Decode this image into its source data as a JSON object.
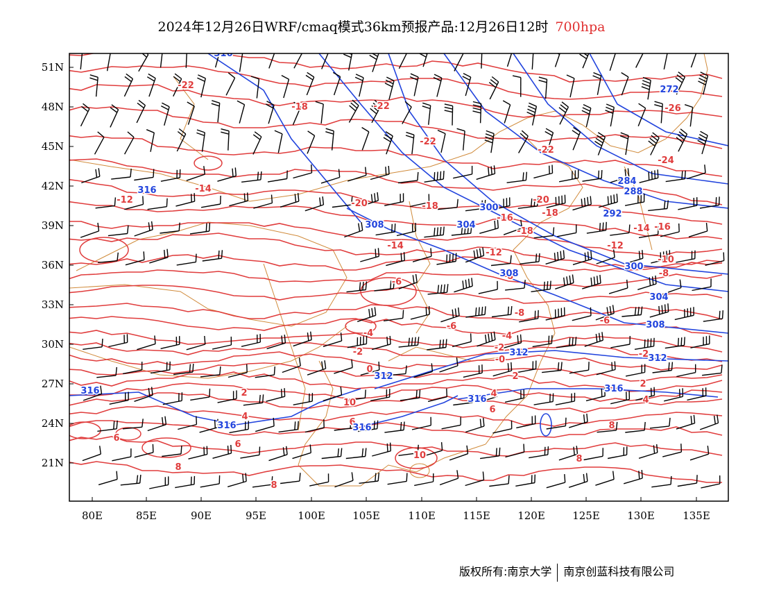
{
  "title": {
    "main": "2024年12月26日WRF/cmaq模式36km预报产品:12月26日12时",
    "level": "700hpa"
  },
  "colors": {
    "temperature_contour": "#e03c3c",
    "height_contour": "#2244dd",
    "border": "#d08a3a",
    "wind_barb": "#000000",
    "level_text": "#e03030"
  },
  "map": {
    "lon_labels": [
      "80E",
      "85E",
      "90E",
      "95E",
      "100E",
      "105E",
      "110E",
      "115E",
      "120E",
      "125E",
      "130E",
      "135E"
    ],
    "lat_labels": [
      "51N",
      "48N",
      "45N",
      "42N",
      "39N",
      "36N",
      "33N",
      "30N",
      "27N",
      "24N",
      "21N"
    ],
    "temperature_labels": [
      "-14",
      "-18",
      "-22",
      "-22",
      "-22",
      "-26",
      "-24",
      "-12",
      "-14",
      "-20",
      "-18",
      "-20",
      "-16",
      "-18",
      "-14",
      "-16",
      "-18",
      "-14",
      "-12",
      "-12",
      "-10",
      "-8",
      "-8",
      "-8",
      "-6",
      "-6",
      "-6",
      "-4",
      "-4",
      "-2",
      "-2",
      "-2",
      "-0",
      "0",
      "2",
      "2",
      "2",
      "4",
      "4",
      "4",
      "4",
      "6",
      "6",
      "6",
      "6",
      "8",
      "8",
      "8",
      "8",
      "10",
      "10",
      "-22"
    ],
    "height_labels": [
      "272",
      "284",
      "288",
      "292",
      "300",
      "300",
      "304",
      "308",
      "308",
      "304",
      "308",
      "312",
      "312",
      "312",
      "316",
      "316",
      "316",
      "316",
      "316",
      "316",
      "316"
    ]
  },
  "footer": {
    "left": "版权所有:南京大学",
    "right": "南京创蓝科技有限公司"
  }
}
